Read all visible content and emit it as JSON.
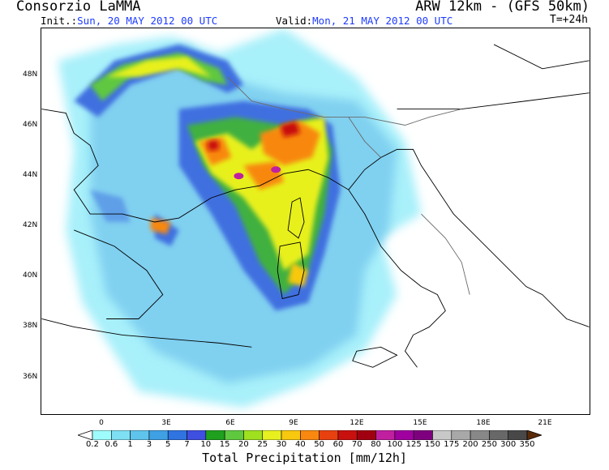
{
  "header": {
    "org": "Consorzio LaMMA",
    "model": "ARW 12km - (GFS 50km)",
    "init_label": "Init.:",
    "init_value": "Sun, 20 MAY 2012  00 UTC",
    "valid_label": "Valid:",
    "valid_value": "Mon, 21 MAY 2012  00 UTC",
    "lead_time": "T=+24h"
  },
  "map": {
    "lat_labels": [
      "48N",
      "46N",
      "44N",
      "42N",
      "40N",
      "38N",
      "36N"
    ],
    "lon_labels": [
      "0",
      "3E",
      "6E",
      "9E",
      "12E",
      "15E",
      "18E",
      "21E"
    ]
  },
  "colorbar": {
    "title": "Total Precipitation [mm/12h]",
    "labels": [
      "0.2",
      "0.6",
      "1",
      "3",
      "5",
      "7",
      "10",
      "15",
      "20",
      "25",
      "30",
      "40",
      "50",
      "60",
      "70",
      "80",
      "100",
      "125",
      "150",
      "175",
      "200",
      "250",
      "300",
      "350"
    ],
    "colors": [
      "#9ffcfc",
      "#7fe0f4",
      "#5fc4ec",
      "#3fa0e4",
      "#2f74e0",
      "#3f4fe0",
      "#1fa01f",
      "#5fc83f",
      "#9fe01f",
      "#e8f01f",
      "#f8c80f",
      "#f8880f",
      "#e8400f",
      "#c8100f",
      "#a0000f",
      "#c020a0",
      "#a000a0",
      "#7f007f",
      "#c8c8c8",
      "#a8a8a8",
      "#888888",
      "#686868",
      "#484848",
      "#8c4a14",
      "#5a2a08"
    ]
  }
}
